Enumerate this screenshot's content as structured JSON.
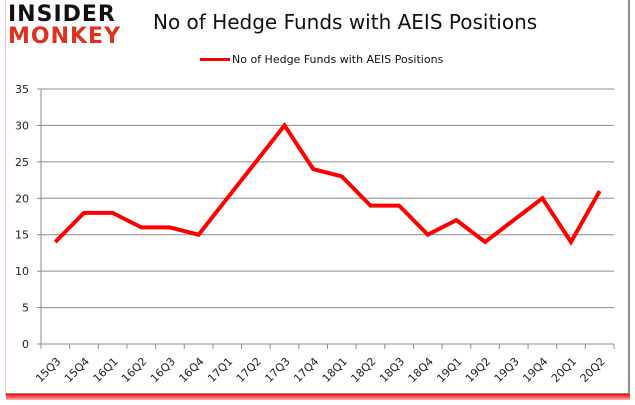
{
  "logo": {
    "top": "INSIDER",
    "bottom": "MONKEY"
  },
  "title": "No of Hedge Funds with AEIS Positions",
  "legend": {
    "label": "No of Hedge Funds with AEIS Positions",
    "color": "#ff0000"
  },
  "chart_data": {
    "type": "line",
    "title": "No of Hedge Funds with AEIS Positions",
    "xlabel": "",
    "ylabel": "",
    "categories": [
      "15Q3",
      "15Q4",
      "16Q1",
      "16Q2",
      "16Q3",
      "16Q4",
      "17Q1",
      "17Q2",
      "17Q3",
      "17Q4",
      "18Q1",
      "18Q2",
      "18Q3",
      "18Q4",
      "19Q1",
      "19Q2",
      "19Q3",
      "19Q4",
      "20Q1",
      "20Q2"
    ],
    "series": [
      {
        "name": "No of Hedge Funds with AEIS Positions",
        "color": "#ff0000",
        "values": [
          14,
          18,
          18,
          16,
          16,
          15,
          20,
          25,
          30,
          24,
          23,
          19,
          19,
          15,
          17,
          14,
          17,
          20,
          14,
          21
        ]
      }
    ],
    "ylim": [
      0,
      35
    ],
    "yticks": [
      0,
      5,
      10,
      15,
      20,
      25,
      30,
      35
    ],
    "grid": true,
    "legend_position": "top"
  }
}
